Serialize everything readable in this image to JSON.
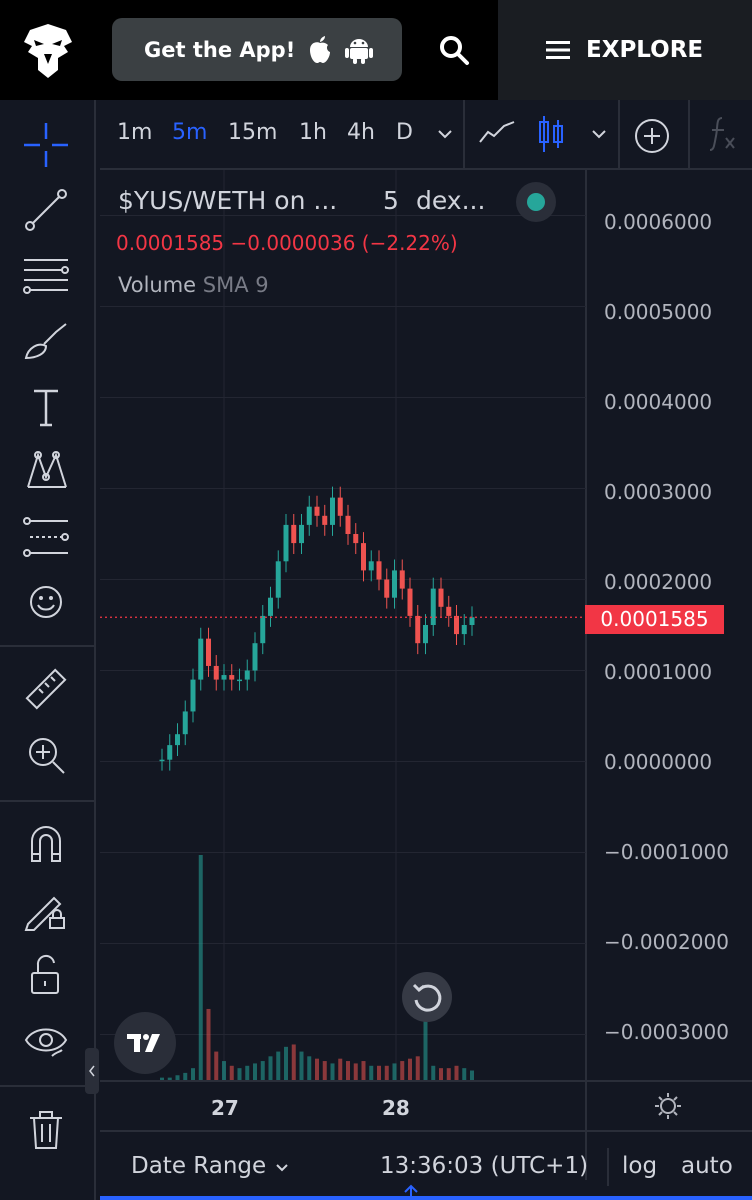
{
  "header": {
    "get_app_label": "Get the App!",
    "explore_label": "EXPLORE",
    "icons": [
      "eagle-logo",
      "apple-icon",
      "android-icon",
      "search-icon",
      "menu-icon"
    ]
  },
  "toolbar": {
    "timeframes": [
      "1m",
      "5m",
      "15m",
      "1h",
      "4h",
      "D"
    ],
    "active_timeframe": "5m",
    "icons": [
      "chevron-down-icon",
      "line-chart-icon",
      "candlestick-icon",
      "chevron-down-icon",
      "add-indicator-icon",
      "fx-icon"
    ]
  },
  "sidebar": {
    "tools": [
      "crosshair-icon",
      "trend-line-icon",
      "fib-retracement-icon",
      "brush-icon",
      "text-icon",
      "pattern-icon",
      "prediction-icon",
      "emoji-icon",
      "ruler-icon",
      "zoom-in-icon",
      "magnet-icon",
      "lock-drawing-icon",
      "unlock-icon",
      "eye-icon",
      "trash-icon"
    ]
  },
  "legend": {
    "symbol": "$YUS/WETH on ...",
    "interval": "5",
    "exchange": "dex...",
    "ohlc": "0.0001585  −0.0000036 (−2.22%)",
    "volume_label": "Volume",
    "volume_indicator": "SMA 9"
  },
  "current_price_label": "0.0001585",
  "price_axis_labels": [
    "0.0006000",
    "0.0005000",
    "0.0004000",
    "0.0003000",
    "0.0002000",
    "0.0001000",
    "0.0000000",
    "−0.0001000",
    "−0.0002000",
    "−0.0003000"
  ],
  "bottom": {
    "date_range_label": "Date Range",
    "clock": "13:36:03 (UTC+1)",
    "log_label": "log",
    "auto_label": "auto"
  },
  "colors": {
    "up": "#26a69a",
    "down": "#ef5350",
    "price_line": "#f23645",
    "active": "#2962ff"
  },
  "chart_data": {
    "type": "candlestick",
    "symbol": "$YUS/WETH",
    "x_ticks": [
      "27",
      "28"
    ],
    "ylim": [
      -0.00035,
      0.00065
    ],
    "last_price": 0.0001585,
    "change": -3.6e-06,
    "change_pct": -2.22,
    "series": [
      {
        "name": "Price",
        "x": [
          "26 19:00",
          "26 20:00",
          "26 21:00",
          "26 22:00",
          "26 23:00",
          "27 00:00",
          "27 01:00",
          "27 02:00",
          "27 03:00",
          "27 04:00",
          "27 05:00",
          "27 06:00",
          "27 07:00",
          "27 08:00",
          "27 09:00",
          "27 10:00",
          "27 11:00",
          "27 12:00",
          "27 13:00",
          "27 14:00",
          "27 15:00",
          "27 16:00",
          "27 17:00",
          "27 18:00",
          "27 19:00",
          "27 20:00",
          "27 21:00",
          "27 22:00",
          "27 23:00",
          "28 00:00",
          "28 01:00",
          "28 02:00",
          "28 03:00",
          "28 04:00",
          "28 05:00",
          "28 06:00",
          "28 07:00",
          "28 08:00",
          "28 09:00",
          "28 10:00",
          "28 11:00"
        ],
        "values": [
          2e-06,
          1.8e-05,
          3e-05,
          5.5e-05,
          9e-05,
          0.000135,
          0.000105,
          9e-05,
          9.5e-05,
          9e-05,
          9e-05,
          0.0001,
          0.00013,
          0.00016,
          0.00018,
          0.00022,
          0.00026,
          0.00024,
          0.00026,
          0.00028,
          0.00027,
          0.00026,
          0.00029,
          0.00027,
          0.00025,
          0.00024,
          0.00021,
          0.00022,
          0.0002,
          0.00018,
          0.00021,
          0.00019,
          0.00016,
          0.00013,
          0.00015,
          0.00019,
          0.00017,
          0.00016,
          0.00014,
          0.00015,
          0.0001585
        ]
      },
      {
        "name": "Volume",
        "values": [
          1,
          1,
          2,
          3,
          5,
          95,
          30,
          12,
          8,
          6,
          5,
          6,
          7,
          8,
          10,
          12,
          14,
          15,
          12,
          10,
          9,
          8,
          7,
          9,
          8,
          7,
          8,
          6,
          6,
          6,
          7,
          8,
          9,
          10,
          35,
          6,
          5,
          5,
          6,
          5,
          4
        ]
      }
    ]
  }
}
